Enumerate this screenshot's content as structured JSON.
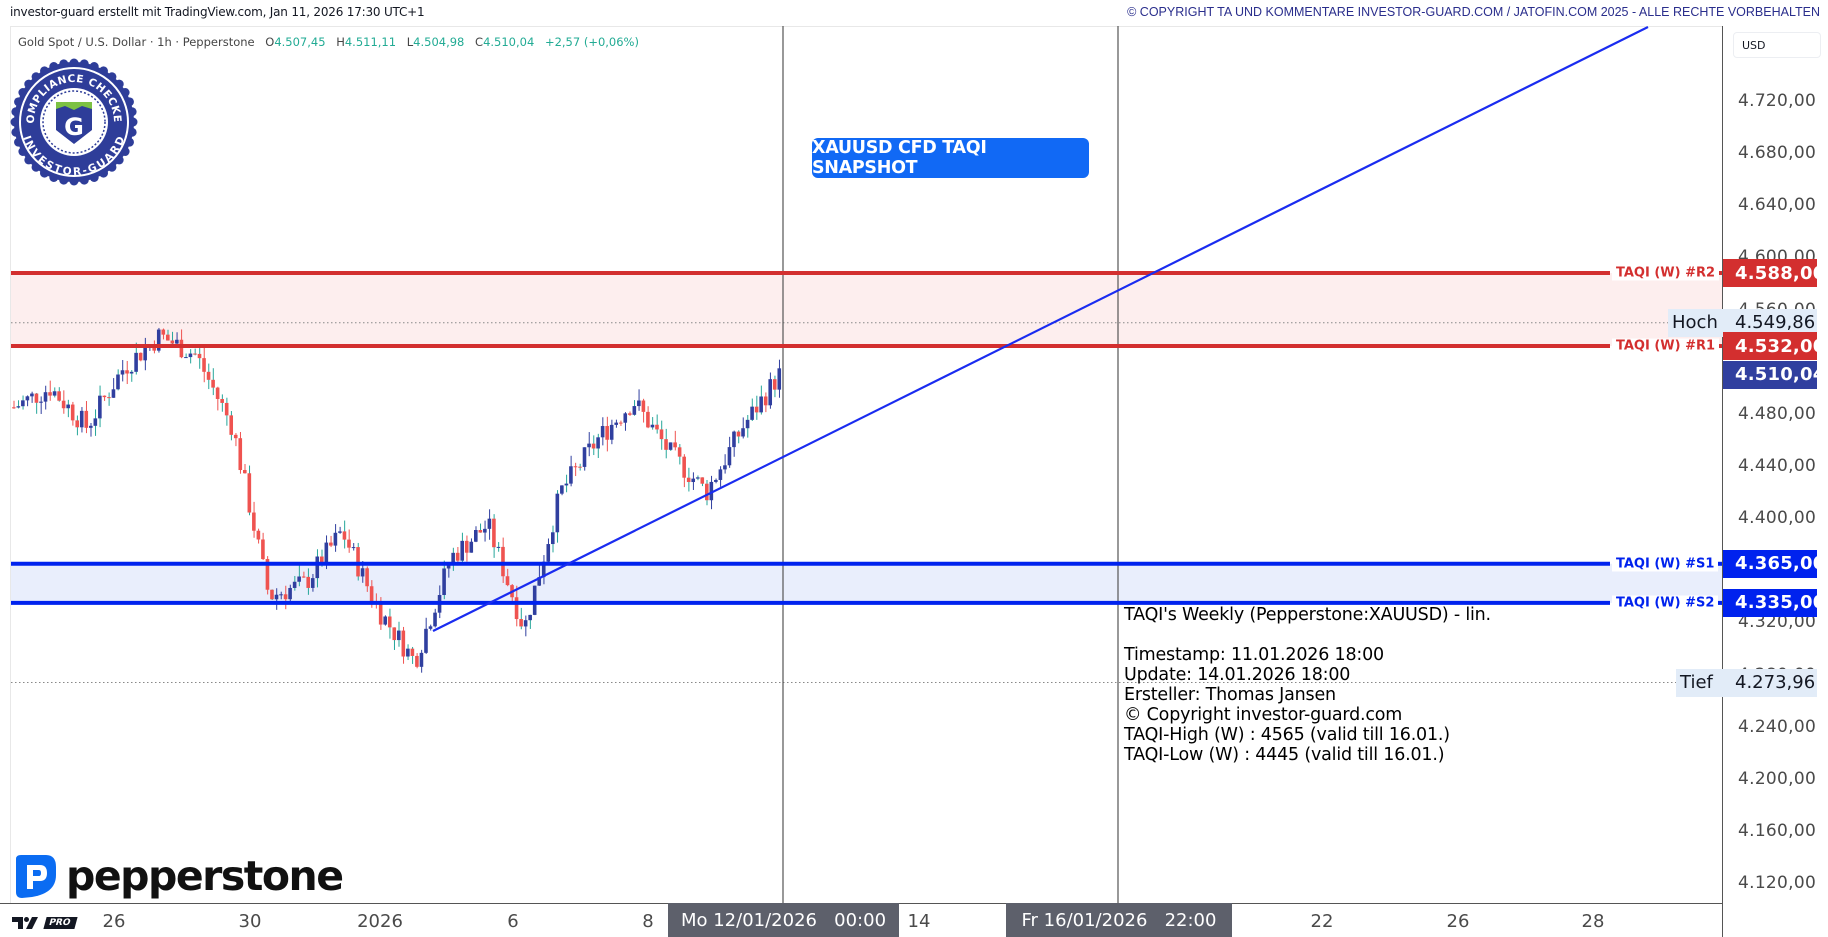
{
  "header": {
    "credit": "investor-guard erstellt mit TradingView.com, Jan 11, 2026 17:30 UTC+1",
    "copyright": "© COPYRIGHT TA UND KOMMENTARE INVESTOR-GUARD.COM / JATOFIN.COM 2025 - ALLE RECHTE VORBEHALTEN"
  },
  "legend": {
    "symbol": "Gold Spot / U.S. Dollar · 1h · Pepperstone",
    "open_label": "O",
    "open": "4.507,45",
    "high_label": "H",
    "high": "4.511,11",
    "low_label": "L",
    "low": "4.504,98",
    "close_label": "C",
    "close": "4.510,04",
    "change": "+2,57 (+0,06%)"
  },
  "badge": {
    "top_text": "COMPLIANCE CHECKED",
    "bottom_text": "INVESTOR-GUARD",
    "letter": "G"
  },
  "snapshot_button": "XAUUSD CFD TAQI SNAPSHOT",
  "info_box": {
    "lines": [
      "TAQI's Weekly (Pepperstone:XAUUSD) - lin.",
      "",
      "Timestamp: 11.01.2026 18:00",
      "Update: 14.01.2026 18:00",
      "Ersteller: Thomas Jansen",
      "© Copyright investor-guard.com",
      "TAQI-High (W) : 4565 (valid till 16.01.)",
      "TAQI-Low (W) : 4445 (valid till 16.01.)"
    ]
  },
  "price_axis": {
    "currency": "USD",
    "ticks": [
      "4.720,00",
      "4.680,00",
      "4.640,00",
      "4.600,00",
      "4.560,00",
      "4.480,00",
      "4.440,00",
      "4.400,00",
      "4.320,00",
      "4.280,00",
      "4.240,00",
      "4.200,00",
      "4.160,00",
      "4.120,00"
    ]
  },
  "levels": {
    "r2": {
      "label": "TAQI (W) #R2",
      "value": "4.588,00"
    },
    "r1": {
      "label": "TAQI (W) #R1",
      "value": "4.532,00"
    },
    "s1": {
      "label": "TAQI (W) #S1",
      "value": "4.365,00"
    },
    "s2": {
      "label": "TAQI (W) #S2",
      "value": "4.335,00"
    },
    "last": {
      "value": "4.510,04"
    },
    "high": {
      "label": "Hoch",
      "value": "4.549,86"
    },
    "low": {
      "label": "Tief",
      "value": "4.273,96"
    }
  },
  "time_axis": {
    "labels": [
      "26",
      "30",
      "2026",
      "6",
      "8",
      "14",
      "22",
      "26",
      "28"
    ],
    "marker1": "Mo 12/01/2026   00:00",
    "marker2": "Fr 16/01/2026   22:00"
  },
  "branding": {
    "broker": "pepperstone",
    "platform_badge": "PRO"
  },
  "colors": {
    "resistance": "#d32f2f",
    "resistance_zone": "#fdeeee",
    "support": "#0022ee",
    "support_zone": "#e9eefc",
    "bull": "#303f9f",
    "bear": "#ef5350",
    "wick": "#26a69a",
    "last_price": "#303f9f",
    "trendline": "#1a2cf0",
    "snapshot": "#1169f5"
  },
  "chart_data": {
    "type": "candlestick",
    "title": "Gold Spot / U.S. Dollar · 1h · Pepperstone (XAUUSD)",
    "xlabel": "",
    "ylabel": "USD",
    "ylim": [
      4100,
      4740
    ],
    "x_ticks": [
      "26",
      "30",
      "2026",
      "6",
      "8",
      "12/01",
      "14",
      "16/01",
      "22",
      "26",
      "28"
    ],
    "last_close": 4510.04,
    "session_high": 4549.86,
    "session_low": 4273.96,
    "horizontal_levels": [
      {
        "name": "TAQI (W) #R2",
        "value": 4588.0
      },
      {
        "name": "TAQI (W) #R1",
        "value": 4532.0
      },
      {
        "name": "TAQI (W) #S1",
        "value": 4365.0
      },
      {
        "name": "TAQI (W) #S2",
        "value": 4335.0
      }
    ],
    "zones": [
      {
        "name": "resistance",
        "from": 4532.0,
        "to": 4588.0
      },
      {
        "name": "support",
        "from": 4335.0,
        "to": 4365.0
      }
    ],
    "trendline": {
      "from": {
        "date": "~02/01/2026",
        "price": 4308
      },
      "to": {
        "date": "~27/01/2026",
        "price": 4740
      }
    },
    "price_path": [
      {
        "t": "23/12",
        "price": 4485
      },
      {
        "t": "24/12",
        "price": 4500
      },
      {
        "t": "25/12",
        "price": 4470
      },
      {
        "t": "26/12",
        "price": 4515
      },
      {
        "t": "27/12",
        "price": 4540
      },
      {
        "t": "28/12",
        "price": 4525
      },
      {
        "t": "29/12",
        "price": 4470
      },
      {
        "t": "29/12 late",
        "price": 4340
      },
      {
        "t": "30/12",
        "price": 4350
      },
      {
        "t": "31/12",
        "price": 4390
      },
      {
        "t": "31/12 late",
        "price": 4330
      },
      {
        "t": "01/01",
        "price": 4290
      },
      {
        "t": "01/01 late",
        "price": 4370
      },
      {
        "t": "02/01",
        "price": 4395
      },
      {
        "t": "02/01 late",
        "price": 4315
      },
      {
        "t": "05/01",
        "price": 4420
      },
      {
        "t": "06/01",
        "price": 4460
      },
      {
        "t": "07/01",
        "price": 4490
      },
      {
        "t": "07/01 late",
        "price": 4450
      },
      {
        "t": "08/01",
        "price": 4420
      },
      {
        "t": "09/01",
        "price": 4470
      },
      {
        "t": "09/01 late",
        "price": 4510
      }
    ]
  }
}
